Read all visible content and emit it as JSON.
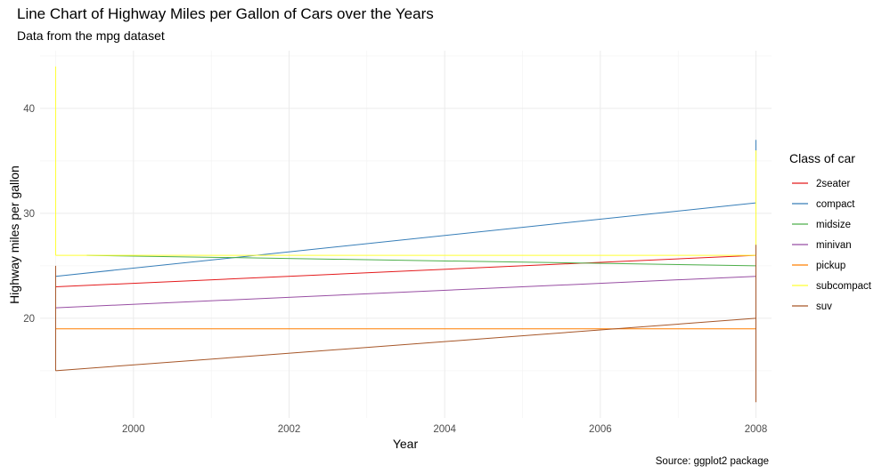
{
  "chart_data": {
    "type": "line",
    "title": "Line Chart of Highway Miles per Gallon of Cars over the Years",
    "subtitle": "Data from the mpg dataset",
    "caption": "Source: ggplot2 package",
    "xlabel": "Year",
    "ylabel": "Highway miles per gallon",
    "xlim": [
      1998.8,
      2008.2
    ],
    "ylim": [
      10.5,
      45.5
    ],
    "x_ticks": [
      2000,
      2002,
      2004,
      2006,
      2008
    ],
    "y_ticks": [
      20,
      30,
      40
    ],
    "grid": true,
    "legend_title": "Class of car",
    "legend_position": "right",
    "series": [
      {
        "name": "2seater",
        "color": "#E41A1C",
        "points": [
          [
            1999,
            23
          ],
          [
            2008,
            26
          ]
        ],
        "x_start": 1999.4,
        "vertical": null
      },
      {
        "name": "compact",
        "color": "#377EB8",
        "points": [
          [
            1999,
            24
          ],
          [
            2008,
            31
          ]
        ],
        "vertical": {
          "x": 2008,
          "y": [
            35,
            37
          ]
        }
      },
      {
        "name": "midsize",
        "color": "#4DAF4A",
        "points": [
          [
            1999.4,
            26
          ],
          [
            2008,
            25
          ]
        ],
        "vertical": null
      },
      {
        "name": "minivan",
        "color": "#984EA3",
        "points": [
          [
            1999,
            21
          ],
          [
            2008,
            24
          ]
        ],
        "vertical": null
      },
      {
        "name": "pickup",
        "color": "#FF7F00",
        "points": [
          [
            1999,
            19
          ],
          [
            2008,
            19
          ]
        ],
        "vertical": null
      },
      {
        "name": "subcompact",
        "color": "#FFFF33",
        "points": [
          [
            1999,
            26
          ],
          [
            2008,
            26
          ]
        ],
        "vertical": {
          "x": 1999,
          "y": [
            26,
            44
          ]
        },
        "vertical2": {
          "x": 2008,
          "y": [
            26,
            36
          ]
        }
      },
      {
        "name": "suv",
        "color": "#A65628",
        "points": [
          [
            1999,
            15
          ],
          [
            2008,
            20
          ]
        ],
        "vertical": {
          "x": 1999,
          "y": [
            15,
            25
          ]
        },
        "vertical2": {
          "x": 2008,
          "y": [
            12,
            27
          ]
        }
      }
    ]
  }
}
